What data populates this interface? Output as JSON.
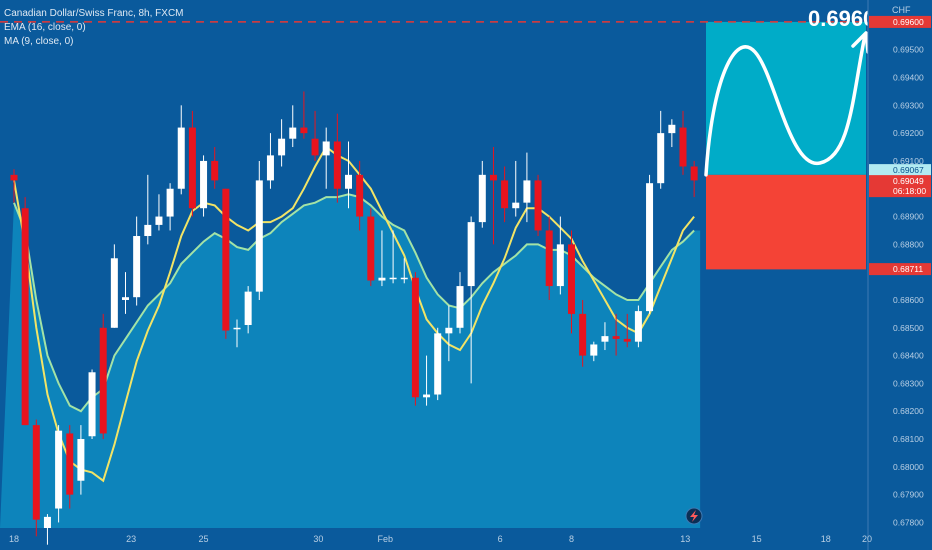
{
  "legend": {
    "symbol": "Canadian Dollar/Swiss Franc, 8h, FXCM",
    "ema": "EMA (16, close, 0)",
    "ma": "MA (9, close, 0)"
  },
  "chart_data": {
    "type": "candlestick",
    "currency": "CHF",
    "ylim": [
      0.6778,
      0.6965
    ],
    "y_ticks": [
      "0.67800",
      "0.67900",
      "0.68000",
      "0.68100",
      "0.68200",
      "0.68300",
      "0.68400",
      "0.68500",
      "0.68600",
      "0.68700",
      "0.68800",
      "0.68900",
      "0.69000",
      "0.69100",
      "0.69200",
      "0.69300",
      "0.69400",
      "0.69500",
      "0.69600"
    ],
    "x_labels": [
      {
        "label": "18",
        "index": 0
      },
      {
        "label": "23",
        "index": 10.5
      },
      {
        "label": "25",
        "index": 17
      },
      {
        "label": "30",
        "index": 27.3
      },
      {
        "label": "Feb",
        "index": 33.3
      },
      {
        "label": "6",
        "index": 43.6
      },
      {
        "label": "8",
        "index": 50
      },
      {
        "label": "13",
        "index": 60.2
      },
      {
        "label": "15",
        "index": 66.6
      },
      {
        "label": "18",
        "index": 72.8
      },
      {
        "label": "20",
        "index": 76.5
      }
    ],
    "candles": [
      {
        "o": 0.6905,
        "h": 0.6907,
        "l": 0.6895,
        "c": 0.6903
      },
      {
        "o": 0.6893,
        "h": 0.6897,
        "l": 0.6815,
        "c": 0.6815
      },
      {
        "o": 0.6815,
        "h": 0.6817,
        "l": 0.6775,
        "c": 0.6781
      },
      {
        "o": 0.6778,
        "h": 0.6783,
        "l": 0.6772,
        "c": 0.6782
      },
      {
        "o": 0.6785,
        "h": 0.6815,
        "l": 0.678,
        "c": 0.6813
      },
      {
        "o": 0.6812,
        "h": 0.6815,
        "l": 0.6785,
        "c": 0.679
      },
      {
        "o": 0.6795,
        "h": 0.6815,
        "l": 0.679,
        "c": 0.681
      },
      {
        "o": 0.6811,
        "h": 0.6835,
        "l": 0.681,
        "c": 0.6834
      },
      {
        "o": 0.685,
        "h": 0.6855,
        "l": 0.681,
        "c": 0.6812
      },
      {
        "o": 0.685,
        "h": 0.688,
        "l": 0.685,
        "c": 0.6875
      },
      {
        "o": 0.686,
        "h": 0.687,
        "l": 0.6855,
        "c": 0.6861
      },
      {
        "o": 0.6861,
        "h": 0.689,
        "l": 0.6858,
        "c": 0.6883
      },
      {
        "o": 0.6883,
        "h": 0.6905,
        "l": 0.688,
        "c": 0.6887
      },
      {
        "o": 0.6887,
        "h": 0.6898,
        "l": 0.6885,
        "c": 0.689
      },
      {
        "o": 0.689,
        "h": 0.6902,
        "l": 0.6885,
        "c": 0.69
      },
      {
        "o": 0.69,
        "h": 0.693,
        "l": 0.6898,
        "c": 0.6922
      },
      {
        "o": 0.6922,
        "h": 0.6928,
        "l": 0.689,
        "c": 0.6893
      },
      {
        "o": 0.6893,
        "h": 0.6912,
        "l": 0.689,
        "c": 0.691
      },
      {
        "o": 0.691,
        "h": 0.6915,
        "l": 0.69,
        "c": 0.6903
      },
      {
        "o": 0.69,
        "h": 0.69,
        "l": 0.6846,
        "c": 0.6849
      },
      {
        "o": 0.685,
        "h": 0.6853,
        "l": 0.6843,
        "c": 0.685
      },
      {
        "o": 0.6851,
        "h": 0.6865,
        "l": 0.6848,
        "c": 0.6863
      },
      {
        "o": 0.6863,
        "h": 0.691,
        "l": 0.686,
        "c": 0.6903
      },
      {
        "o": 0.6903,
        "h": 0.692,
        "l": 0.69,
        "c": 0.6912
      },
      {
        "o": 0.6912,
        "h": 0.6925,
        "l": 0.6908,
        "c": 0.6918
      },
      {
        "o": 0.6918,
        "h": 0.693,
        "l": 0.6915,
        "c": 0.6922
      },
      {
        "o": 0.6922,
        "h": 0.6935,
        "l": 0.6918,
        "c": 0.692
      },
      {
        "o": 0.6918,
        "h": 0.6928,
        "l": 0.691,
        "c": 0.6912
      },
      {
        "o": 0.6912,
        "h": 0.6922,
        "l": 0.69,
        "c": 0.6917
      },
      {
        "o": 0.6917,
        "h": 0.6927,
        "l": 0.6895,
        "c": 0.69
      },
      {
        "o": 0.69,
        "h": 0.6917,
        "l": 0.6893,
        "c": 0.6905
      },
      {
        "o": 0.6905,
        "h": 0.691,
        "l": 0.6885,
        "c": 0.689
      },
      {
        "o": 0.689,
        "h": 0.6893,
        "l": 0.6865,
        "c": 0.6867
      },
      {
        "o": 0.6867,
        "h": 0.6885,
        "l": 0.6865,
        "c": 0.6868
      },
      {
        "o": 0.6868,
        "h": 0.6885,
        "l": 0.6866,
        "c": 0.6868
      },
      {
        "o": 0.6868,
        "h": 0.6875,
        "l": 0.6866,
        "c": 0.6868
      },
      {
        "o": 0.6868,
        "h": 0.687,
        "l": 0.6822,
        "c": 0.6825
      },
      {
        "o": 0.6825,
        "h": 0.684,
        "l": 0.6822,
        "c": 0.6826
      },
      {
        "o": 0.6826,
        "h": 0.685,
        "l": 0.6824,
        "c": 0.6848
      },
      {
        "o": 0.6848,
        "h": 0.6858,
        "l": 0.6838,
        "c": 0.685
      },
      {
        "o": 0.685,
        "h": 0.687,
        "l": 0.6848,
        "c": 0.6865
      },
      {
        "o": 0.6865,
        "h": 0.689,
        "l": 0.683,
        "c": 0.6888
      },
      {
        "o": 0.6888,
        "h": 0.691,
        "l": 0.6886,
        "c": 0.6905
      },
      {
        "o": 0.6905,
        "h": 0.6915,
        "l": 0.688,
        "c": 0.6903
      },
      {
        "o": 0.6903,
        "h": 0.6908,
        "l": 0.6888,
        "c": 0.6893
      },
      {
        "o": 0.6893,
        "h": 0.691,
        "l": 0.689,
        "c": 0.6895
      },
      {
        "o": 0.6895,
        "h": 0.6913,
        "l": 0.6888,
        "c": 0.6903
      },
      {
        "o": 0.6903,
        "h": 0.6905,
        "l": 0.6883,
        "c": 0.6885
      },
      {
        "o": 0.6885,
        "h": 0.689,
        "l": 0.686,
        "c": 0.6865
      },
      {
        "o": 0.6865,
        "h": 0.689,
        "l": 0.6862,
        "c": 0.688
      },
      {
        "o": 0.688,
        "h": 0.6885,
        "l": 0.6848,
        "c": 0.6855
      },
      {
        "o": 0.6855,
        "h": 0.686,
        "l": 0.6836,
        "c": 0.684
      },
      {
        "o": 0.684,
        "h": 0.6845,
        "l": 0.6838,
        "c": 0.6844
      },
      {
        "o": 0.6845,
        "h": 0.6852,
        "l": 0.6842,
        "c": 0.6847
      },
      {
        "o": 0.6847,
        "h": 0.6855,
        "l": 0.684,
        "c": 0.6846
      },
      {
        "o": 0.6846,
        "h": 0.6855,
        "l": 0.6843,
        "c": 0.6845
      },
      {
        "o": 0.6845,
        "h": 0.6858,
        "l": 0.6843,
        "c": 0.6856
      },
      {
        "o": 0.6856,
        "h": 0.6905,
        "l": 0.6855,
        "c": 0.6902
      },
      {
        "o": 0.6902,
        "h": 0.6928,
        "l": 0.69,
        "c": 0.692
      },
      {
        "o": 0.692,
        "h": 0.6925,
        "l": 0.6915,
        "c": 0.6923
      },
      {
        "o": 0.6922,
        "h": 0.6928,
        "l": 0.6905,
        "c": 0.6908
      },
      {
        "o": 0.6908,
        "h": 0.691,
        "l": 0.6897,
        "c": 0.6903
      }
    ],
    "ema_16": [
      0.6895,
      0.6885,
      0.686,
      0.684,
      0.683,
      0.6822,
      0.682,
      0.6825,
      0.6828,
      0.684,
      0.6846,
      0.6852,
      0.6858,
      0.6862,
      0.6866,
      0.6873,
      0.6877,
      0.6881,
      0.6884,
      0.6882,
      0.6879,
      0.6878,
      0.6882,
      0.6884,
      0.6888,
      0.6891,
      0.6894,
      0.6895,
      0.6897,
      0.6897,
      0.6898,
      0.6897,
      0.6894,
      0.689,
      0.6887,
      0.6885,
      0.6877,
      0.6868,
      0.6862,
      0.6858,
      0.6857,
      0.6861,
      0.6866,
      0.687,
      0.6873,
      0.6876,
      0.688,
      0.688,
      0.6878,
      0.6878,
      0.6876,
      0.6872,
      0.6868,
      0.6865,
      0.6862,
      0.686,
      0.686,
      0.6866,
      0.6872,
      0.6878,
      0.6881,
      0.6885
    ],
    "ma_9": [
      0.6903,
      0.688,
      0.685,
      0.6826,
      0.6812,
      0.6802,
      0.6799,
      0.6798,
      0.6795,
      0.6808,
      0.6823,
      0.6838,
      0.6849,
      0.6858,
      0.687,
      0.6883,
      0.6892,
      0.6895,
      0.6894,
      0.689,
      0.6887,
      0.6885,
      0.6888,
      0.6888,
      0.689,
      0.6893,
      0.69,
      0.6908,
      0.6915,
      0.6912,
      0.691,
      0.6905,
      0.69,
      0.6892,
      0.6884,
      0.6876,
      0.6864,
      0.6853,
      0.6848,
      0.6844,
      0.6842,
      0.6848,
      0.6858,
      0.6866,
      0.6875,
      0.6886,
      0.6893,
      0.6893,
      0.689,
      0.6886,
      0.6882,
      0.6874,
      0.6867,
      0.686,
      0.6853,
      0.685,
      0.6848,
      0.6855,
      0.6865,
      0.6875,
      0.6885,
      0.689
    ],
    "target_line": {
      "value": 0.696,
      "label": "0.69600",
      "color": "#e53935"
    },
    "annotation": {
      "text": "0.69600"
    },
    "zone_profit": {
      "top": 0.696,
      "bottom": 0.6905,
      "color": "#00acc8"
    },
    "zone_stop": {
      "top": 0.6905,
      "bottom": 0.6871,
      "color": "#f44336"
    },
    "price_tags": [
      {
        "value": 0.69067,
        "text": "0.69067",
        "bg": "#b2ebf2",
        "fg": "#084f8a"
      },
      {
        "value": 0.69049,
        "text": "0.69049",
        "bg": "#e53935",
        "fg": "#ffffff",
        "sub": "06:18:00"
      },
      {
        "value": 0.68711,
        "text": "0.68711",
        "bg": "#e53935",
        "fg": "#ffffff"
      }
    ],
    "colors": {
      "up": "#ffffff",
      "down": "#e8141e",
      "ema": "#f2e466",
      "ma": "#a3e3a6",
      "bg": "#0a5a9c",
      "area": "#0e8cc1"
    }
  }
}
